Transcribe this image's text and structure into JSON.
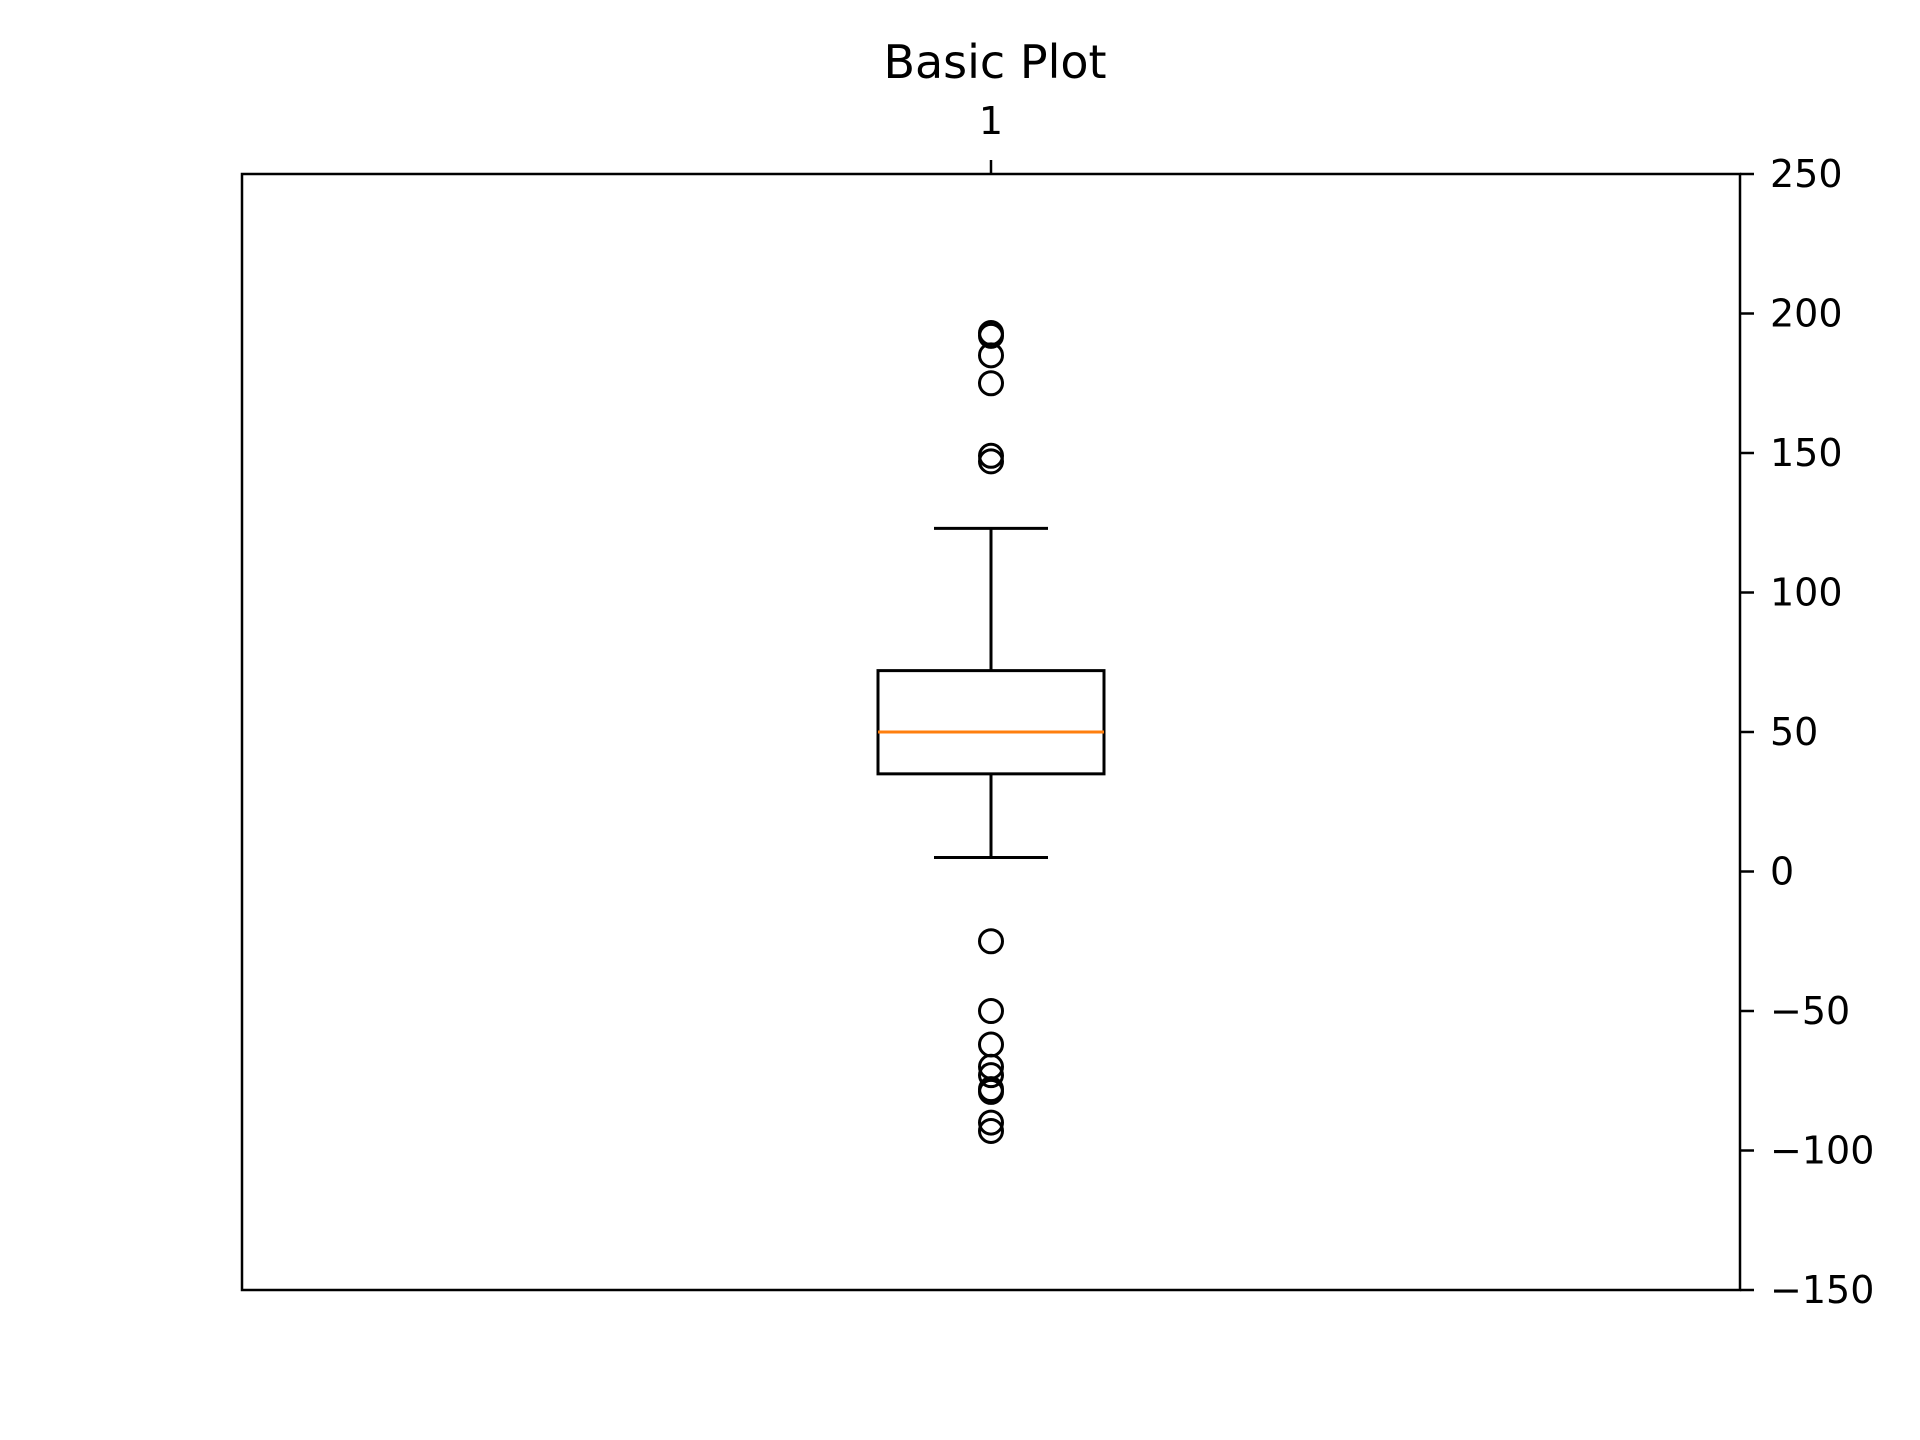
{
  "chart_data": {
    "type": "boxplot",
    "title": "Basic Plot",
    "xlabel": "",
    "ylabel": "",
    "categories": [
      "1"
    ],
    "ylim": [
      -150,
      250
    ],
    "y_ticks": [
      250,
      200,
      150,
      100,
      50,
      0,
      -50,
      -100,
      -150
    ],
    "y_tick_labels": [
      "250",
      "200",
      "150",
      "100",
      "50",
      "0",
      "−50",
      "−100",
      "−150"
    ],
    "y_axis_position": "right",
    "x_axis_position": "top",
    "grid": false,
    "legend": "none",
    "box": {
      "category": "1",
      "whisker_low": 5,
      "q1": 35,
      "median": 50,
      "q3": 72,
      "whisker_high": 123,
      "outliers": [
        193,
        192,
        185,
        175,
        149,
        147,
        -25,
        -50,
        -62,
        -70,
        -73,
        -78,
        -79,
        -90,
        -93
      ]
    },
    "colors": {
      "box": "#000000",
      "median": "#ff7f0e",
      "outlier": "#000000"
    }
  }
}
